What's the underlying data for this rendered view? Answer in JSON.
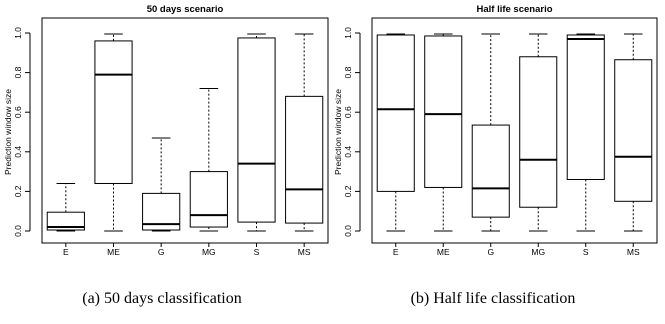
{
  "chart_data": [
    {
      "type": "box",
      "title": "50 days scenario",
      "ylabel": "Prediction window size",
      "xlabel": "",
      "caption": "(a) 50 days classification",
      "ylim": [
        0,
        1
      ],
      "yticks": [
        "0.0",
        "0.2",
        "0.4",
        "0.6",
        "0.8",
        "1.0"
      ],
      "categories": [
        "E",
        "ME",
        "G",
        "MG",
        "S",
        "MS"
      ],
      "boxes": [
        {
          "min": 0.0,
          "q1": 0.005,
          "median": 0.02,
          "q3": 0.095,
          "max": 0.24
        },
        {
          "min": 0.0,
          "q1": 0.24,
          "median": 0.79,
          "q3": 0.96,
          "max": 0.995
        },
        {
          "min": 0.0,
          "q1": 0.005,
          "median": 0.035,
          "q3": 0.19,
          "max": 0.47
        },
        {
          "min": 0.0,
          "q1": 0.02,
          "median": 0.08,
          "q3": 0.3,
          "max": 0.72
        },
        {
          "min": 0.0,
          "q1": 0.045,
          "median": 0.34,
          "q3": 0.975,
          "max": 0.995
        },
        {
          "min": 0.0,
          "q1": 0.04,
          "median": 0.21,
          "q3": 0.68,
          "max": 0.995
        }
      ]
    },
    {
      "type": "box",
      "title": "Half life scenario",
      "ylabel": "Prediction window size",
      "xlabel": "",
      "caption": "(b) Half life classification",
      "ylim": [
        0,
        1
      ],
      "yticks": [
        "0.0",
        "0.2",
        "0.4",
        "0.6",
        "0.8",
        "1.0"
      ],
      "categories": [
        "E",
        "ME",
        "G",
        "MG",
        "S",
        "MS"
      ],
      "boxes": [
        {
          "min": 0.0,
          "q1": 0.2,
          "median": 0.615,
          "q3": 0.99,
          "max": 0.995
        },
        {
          "min": 0.0,
          "q1": 0.22,
          "median": 0.59,
          "q3": 0.985,
          "max": 0.995
        },
        {
          "min": 0.0,
          "q1": 0.07,
          "median": 0.215,
          "q3": 0.535,
          "max": 0.995
        },
        {
          "min": 0.0,
          "q1": 0.12,
          "median": 0.36,
          "q3": 0.88,
          "max": 0.995
        },
        {
          "min": 0.0,
          "q1": 0.26,
          "median": 0.97,
          "q3": 0.99,
          "max": 0.995
        },
        {
          "min": 0.0,
          "q1": 0.15,
          "median": 0.375,
          "q3": 0.865,
          "max": 0.995
        }
      ]
    }
  ]
}
